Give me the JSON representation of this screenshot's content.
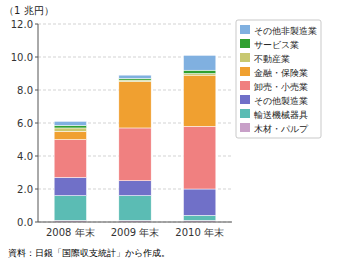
{
  "chart_data": {
    "type": "bar",
    "stacked": true,
    "categories": [
      "2008 年末",
      "2009 年末",
      "2010 年末"
    ],
    "series": [
      {
        "name": "木材・パルプ",
        "color": "#c8a0c8",
        "values": [
          0.1,
          0.1,
          0.1
        ]
      },
      {
        "name": "輸送機械器具",
        "color": "#5bbcb4",
        "values": [
          1.5,
          1.5,
          0.3
        ]
      },
      {
        "name": "その他製造業",
        "color": "#7070c8",
        "values": [
          1.1,
          0.9,
          1.6
        ]
      },
      {
        "name": "卸売・小売業",
        "color": "#f08080",
        "values": [
          2.3,
          3.2,
          3.8
        ]
      },
      {
        "name": "金融・保険業",
        "color": "#f0a030",
        "values": [
          0.5,
          2.8,
          3.1
        ]
      },
      {
        "name": "不動産業",
        "color": "#c8c870",
        "values": [
          0.2,
          0.1,
          0.1
        ]
      },
      {
        "name": "サービス業",
        "color": "#30a030",
        "values": [
          0.15,
          0.1,
          0.2
        ]
      },
      {
        "name": "その他非製造業",
        "color": "#80b0e0",
        "values": [
          0.25,
          0.2,
          0.9
        ]
      }
    ],
    "ylim": [
      0,
      12.0
    ],
    "yticks": [
      {
        "value": 0.0,
        "label": "0.0"
      },
      {
        "value": 2.0,
        "label": "2.0"
      },
      {
        "value": 4.0,
        "label": "4.0"
      },
      {
        "value": 6.0,
        "label": "6.0"
      },
      {
        "value": 8.0,
        "label": "8.0"
      },
      {
        "value": 10.0,
        "label": "10.0"
      },
      {
        "value": 12.0,
        "label": "12.0"
      }
    ],
    "y_label": "（1 兆円）",
    "caption": "資料：日銀「国際収支統計」から作成。",
    "grid": true,
    "legend": "right"
  }
}
